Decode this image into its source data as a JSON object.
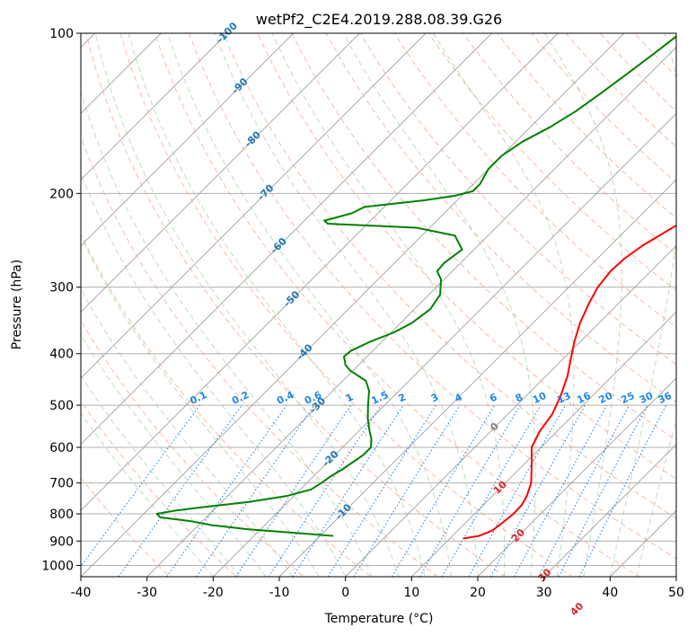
{
  "chart_data": {
    "type": "line",
    "subtype": "skew-t log-p diagram",
    "title": "wetPf2_C2E4.2019.288.08.39.G26",
    "xlabel": "Temperature (°C)",
    "ylabel": "Pressure (hPa)",
    "xlim": [
      -40,
      50
    ],
    "ylim": [
      1050,
      100
    ],
    "y_scale": "log",
    "grid": true,
    "x_ticks": [
      "-40",
      "-30",
      "-20",
      "-10",
      "0",
      "10",
      "20",
      "30",
      "40",
      "50"
    ],
    "y_ticks": [
      "100",
      "200",
      "300",
      "400",
      "500",
      "600",
      "700",
      "800",
      "900",
      "1000"
    ],
    "series": [
      {
        "role": "temperature",
        "color": "#ff0000",
        "points": [
          [
            890,
            12
          ],
          [
            880,
            14
          ],
          [
            860,
            15.2
          ],
          [
            830,
            15.6
          ],
          [
            800,
            15.9
          ],
          [
            770,
            15.8
          ],
          [
            740,
            15.2
          ],
          [
            700,
            13.9
          ],
          [
            650,
            11.4
          ],
          [
            600,
            8.6
          ],
          [
            560,
            7.4
          ],
          [
            520,
            6.7
          ],
          [
            480,
            5.2
          ],
          [
            440,
            3.2
          ],
          [
            410,
            1.2
          ],
          [
            380,
            -0.9
          ],
          [
            350,
            -2.9
          ],
          [
            320,
            -4.6
          ],
          [
            300,
            -5.6
          ],
          [
            280,
            -6.1
          ],
          [
            265,
            -5.9
          ],
          [
            250,
            -5.1
          ],
          [
            240,
            -4.1
          ],
          [
            230,
            -3.1
          ],
          [
            215,
            -1.6
          ],
          [
            200,
            -0.6
          ],
          [
            190,
            -0.6
          ],
          [
            180,
            -0.1
          ],
          [
            170,
            0.9
          ],
          [
            155,
            2.4
          ],
          [
            140,
            4.1
          ],
          [
            130,
            5.2
          ],
          [
            120,
            6.4
          ],
          [
            110,
            7.1
          ],
          [
            100,
            7.4
          ]
        ]
      },
      {
        "role": "dewpoint",
        "color": "#008000",
        "points": [
          [
            880,
            -8
          ],
          [
            870,
            -13.5
          ],
          [
            855,
            -22
          ],
          [
            840,
            -28
          ],
          [
            825,
            -32
          ],
          [
            812,
            -37
          ],
          [
            800,
            -38
          ],
          [
            790,
            -36
          ],
          [
            780,
            -33
          ],
          [
            760,
            -26
          ],
          [
            740,
            -21
          ],
          [
            720,
            -18.4
          ],
          [
            700,
            -17.8
          ],
          [
            680,
            -17.4
          ],
          [
            660,
            -16.7
          ],
          [
            640,
            -16.2
          ],
          [
            620,
            -15.7
          ],
          [
            600,
            -15.7
          ],
          [
            580,
            -16.8
          ],
          [
            560,
            -18.3
          ],
          [
            530,
            -20.5
          ],
          [
            500,
            -22.5
          ],
          [
            470,
            -24.5
          ],
          [
            450,
            -26.5
          ],
          [
            430,
            -30.5
          ],
          [
            420,
            -32
          ],
          [
            405,
            -33.5
          ],
          [
            395,
            -33.3
          ],
          [
            380,
            -31.8
          ],
          [
            365,
            -29.6
          ],
          [
            350,
            -28.3
          ],
          [
            330,
            -27.6
          ],
          [
            310,
            -28.3
          ],
          [
            290,
            -30.5
          ],
          [
            280,
            -32.3
          ],
          [
            270,
            -32.5
          ],
          [
            255,
            -31.8
          ],
          [
            240,
            -35
          ],
          [
            232,
            -42
          ],
          [
            228,
            -56
          ],
          [
            225,
            -57
          ],
          [
            218,
            -54
          ],
          [
            212,
            -53
          ],
          [
            206,
            -45
          ],
          [
            202,
            -41
          ],
          [
            198,
            -39
          ],
          [
            192,
            -39
          ],
          [
            180,
            -40
          ],
          [
            170,
            -40
          ],
          [
            160,
            -39
          ],
          [
            150,
            -37
          ],
          [
            140,
            -35.5
          ],
          [
            130,
            -34.5
          ],
          [
            120,
            -33.5
          ],
          [
            110,
            -32.5
          ],
          [
            100,
            -31.5
          ]
        ]
      }
    ],
    "isotherm_labels": [
      "-100",
      "-90",
      "-80",
      "-70",
      "-60",
      "-50",
      "-40",
      "-30",
      "-20",
      "-10",
      "0",
      "10",
      "20",
      "30",
      "40"
    ],
    "mixing_ratio_labels": [
      "0.1",
      "0.2",
      "0.4",
      "0.6",
      "1",
      "1.5",
      "2",
      "3",
      "4",
      "6",
      "8",
      "10",
      "13",
      "16",
      "20",
      "25",
      "30",
      "36"
    ],
    "colors": {
      "temperature": "#ff0000",
      "dewpoint": "#008000",
      "isotherm": "#a0a0a0",
      "isotherm_label": "#1f77b4",
      "dry_adiabat": "#f4a582",
      "moist_adiabat": "#8fbc8f",
      "mixing_ratio": "#1e88e5",
      "warm_label": "#d62728",
      "zero_label": "#808080"
    }
  }
}
